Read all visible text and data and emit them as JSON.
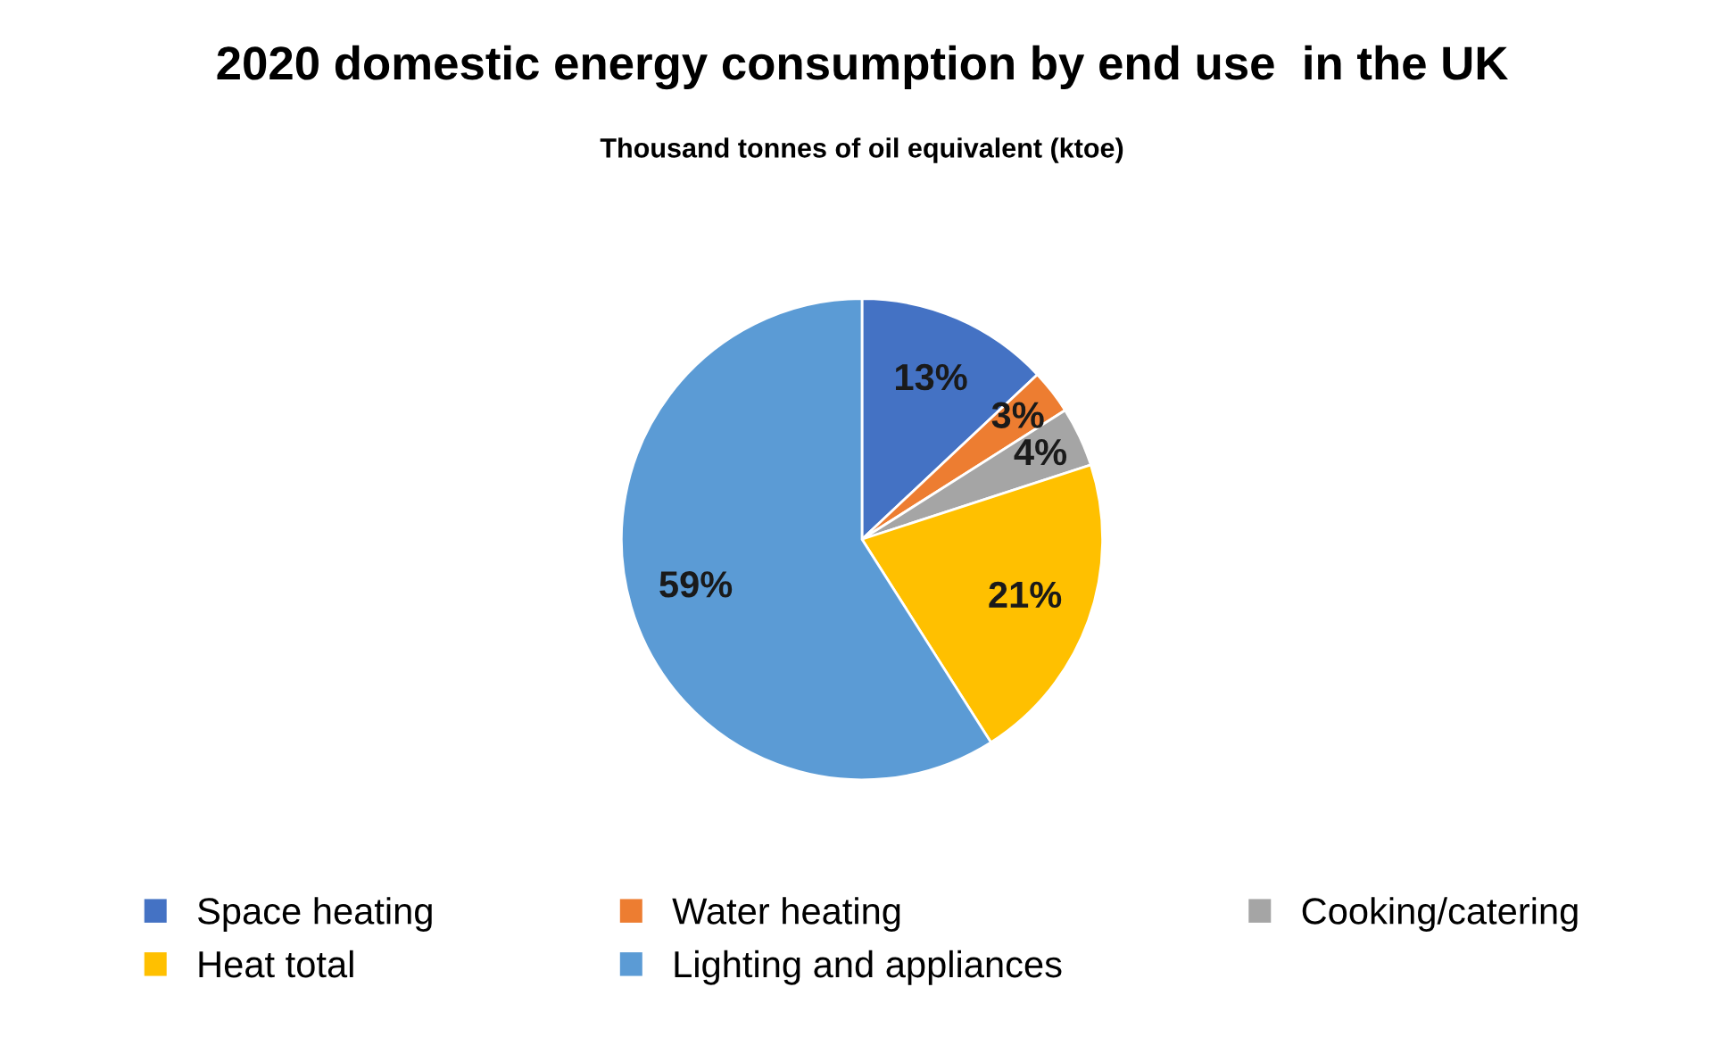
{
  "chart_data": {
    "type": "pie",
    "title": "2020 domestic energy consumption by end use  in the UK",
    "subtitle": "Thousand tonnes of oil equivalent (ktoe)",
    "categories": [
      "Space heating",
      "Water heating",
      "Cooking/catering",
      "Heat total",
      "Lighting and appliances"
    ],
    "values": [
      13,
      3,
      4,
      21,
      59
    ],
    "colors": [
      "#4472c4",
      "#ed7d31",
      "#a5a5a5",
      "#ffc000",
      "#5b9bd5"
    ],
    "value_labels": [
      "13%",
      "3%",
      "4%",
      "21%",
      "59%"
    ],
    "legend": "bottom"
  }
}
